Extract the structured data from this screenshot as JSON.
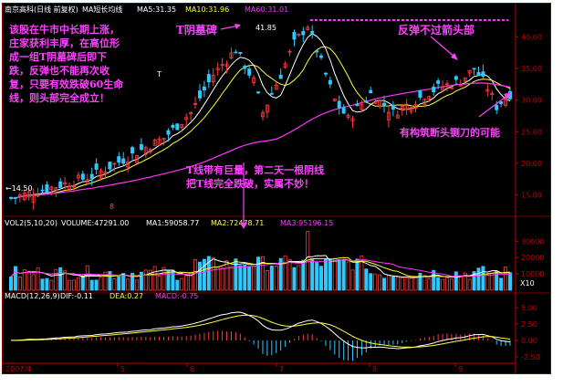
{
  "colors": {
    "background": "#000000",
    "frame": "#7a0000",
    "axis": "#c00000",
    "up": "#ff3b3b",
    "down": "#2ec8ff",
    "ma_white": "#ffffff",
    "ma_yellow": "#ffff33",
    "ma_magenta": "#ff33ff",
    "grid_dash": "#ff33ff",
    "annotation": "#ff40ff",
    "header_white": "#ffffff",
    "price_label": "#ff5050"
  },
  "price_panel": {
    "stock_name": "南京高科(日线 前复权)",
    "indicator": "MA短长均线",
    "ma5_label": "MA5:31.35",
    "ma10_label": "MA10:31.96",
    "ma60_label": "MA60:31.01",
    "high_price_label": "41.85",
    "low_price_label": "←14.50",
    "y_ticks": [
      "40.00",
      "35.00",
      "30.00",
      "25.00",
      "20.00",
      "15.00"
    ],
    "y_values": [
      40,
      35,
      30,
      25,
      20,
      15
    ],
    "ylim": [
      11.5,
      43.5
    ],
    "event_marker": "8",
    "pair_marker": "2",
    "t_line_marker": "T"
  },
  "volume_panel": {
    "header": "VOL2(5,10,20)",
    "volume_label": "VOLUME:47291.00",
    "ma1_label": "MA1:59058.77",
    "ma2_label": "MA2:72478.71",
    "ma3_label": "MA3:95196.15",
    "y_ticks": [
      "30000",
      "20000",
      "10000"
    ],
    "y_values": [
      30000,
      20000,
      10000
    ],
    "unit": "X10"
  },
  "macd_panel": {
    "header": "MACD(12,26,9)",
    "dif_label": "DIF:-0.11",
    "dea_label": "DEA:0.27",
    "macd_label": "MACD:-0.75",
    "y_ticks": [
      "5.00",
      "2.50",
      "0.00",
      "-2.50"
    ],
    "y_values": [
      5,
      2.5,
      0,
      -2.5
    ]
  },
  "x_axis": {
    "labels": [
      "2007/4",
      "5",
      "6",
      "7",
      "8",
      "9"
    ],
    "period": "日线"
  },
  "annotations": {
    "left_note": [
      "该股在牛市中长期上涨，",
      "庄家获利丰厚，在高位形",
      "成一组T阴墓碑后即下",
      "跌，反弹也不能再次收",
      "复，只要有效跌破60生命",
      "线，则头部完全成立！"
    ],
    "tombstone": "T阴墓碑",
    "rebound_note": "反弹不过箭头部",
    "breakdown_note": "有构筑断头铡刀的可能",
    "t_line_note": [
      "T线带有巨量，第二天一根阴线",
      "把T线完全跌破，实属不妙！"
    ]
  },
  "chart_data": {
    "type": "candlestick",
    "title": "南京高科(日线 前复权)",
    "x_axis": [
      "2007/4",
      "5",
      "6",
      "7",
      "8",
      "9"
    ],
    "price_range": [
      14.5,
      41.85
    ],
    "high": 41.85,
    "low": 14.5,
    "ma_lines": {
      "MA5": 31.35,
      "MA10": 31.96,
      "MA60": 31.01
    },
    "volume": {
      "VOLUME": 47291.0,
      "MA1": 59058.77,
      "MA2": 72478.71,
      "MA3": 95196.15
    },
    "macd": {
      "DIF": -0.11,
      "DEA": 0.27,
      "MACD": -0.75
    }
  }
}
